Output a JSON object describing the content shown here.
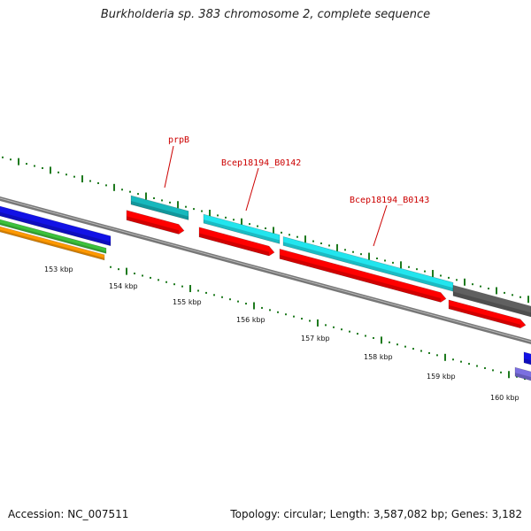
{
  "title": "Burkholderia sp. 383 chromosome 2, complete sequence",
  "footer": {
    "accession": "Accession: NC_007511",
    "summary": "Topology: circular; Length: 3,587,082 bp; Genes: 3,182"
  },
  "colors": {
    "backbone": "#777777",
    "tick": "#1e7a1e",
    "label": "#cc0000",
    "cds_red": "#ff0000",
    "cyan": "#22e5ee",
    "teal": "#17b8bd",
    "blue": "#1212e6",
    "green": "#3cc23c",
    "orange": "#ff9900",
    "gray": "#606060",
    "lavender": "#7b6fe0"
  },
  "tick_labels": [
    {
      "name": "tick-label-153",
      "text": "153 kbp"
    },
    {
      "name": "tick-label-154",
      "text": "154 kbp"
    },
    {
      "name": "tick-label-155",
      "text": "155 kbp"
    },
    {
      "name": "tick-label-156",
      "text": "156 kbp"
    },
    {
      "name": "tick-label-157",
      "text": "157 kbp"
    },
    {
      "name": "tick-label-158",
      "text": "158 kbp"
    },
    {
      "name": "tick-label-159",
      "text": "159 kbp"
    },
    {
      "name": "tick-label-160",
      "text": "160 kbp"
    }
  ],
  "gene_labels": [
    {
      "name": "gene-label-prpb",
      "text": "prpB"
    },
    {
      "name": "gene-label-bcep18194-b0142",
      "text": "Bcep18194_B0142"
    },
    {
      "name": "gene-label-bcep18194-b0143",
      "text": "Bcep18194_B0143"
    }
  ]
}
